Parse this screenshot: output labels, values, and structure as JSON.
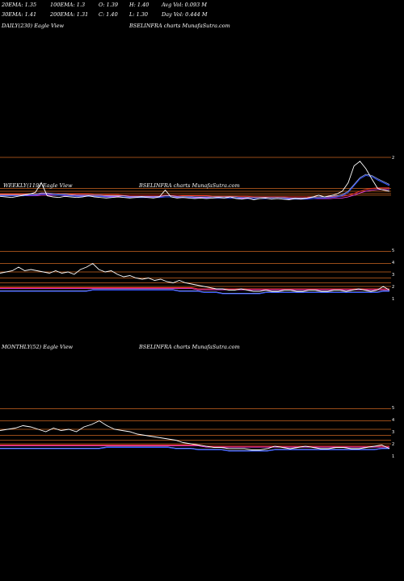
{
  "header": {
    "ema20": "20EMA: 1.35",
    "ema100": "100EMA: 1.3",
    "open": "O: 1.39",
    "high": "H: 1.40",
    "avgvol": "Avg Vol: 0.093  M",
    "ema30": "30EMA: 1.41",
    "ema200": "200EMA: 1.31",
    "close": "C: 1.40",
    "low": "L: 1.30",
    "dayvol": "Day Vol: 0.444  M"
  },
  "panels": {
    "daily": {
      "label": "DAILY(230) Eagle   View",
      "chart": "BSELINFRA charts MunafaSutra.com"
    },
    "weekly": {
      "label": "WEEKLY(119) Eagle   View",
      "chart": "BSELINFRA charts MunafaSutra.com"
    },
    "monthly": {
      "label": "MONTHLY(52) Eagle   View",
      "chart": "BSELINFRA charts MunafaSutra.com"
    }
  },
  "colors": {
    "price": "#ffffff",
    "ema_blue": "#3355ff",
    "ema_red": "#ff3333",
    "ema_magenta": "#ff44ff",
    "ema_light": "#aabbff",
    "level_line": "#cc6622"
  },
  "chart_data": [
    {
      "type": "line",
      "name": "daily",
      "ylim": [
        0.5,
        2.5
      ],
      "tick_labels": [
        "2"
      ],
      "price": [
        1.31,
        1.3,
        1.29,
        1.31,
        1.33,
        1.35,
        1.38,
        1.55,
        1.32,
        1.3,
        1.29,
        1.31,
        1.3,
        1.29,
        1.3,
        1.32,
        1.3,
        1.29,
        1.28,
        1.29,
        1.3,
        1.29,
        1.28,
        1.29,
        1.3,
        1.29,
        1.28,
        1.3,
        1.42,
        1.3,
        1.28,
        1.29,
        1.28,
        1.27,
        1.28,
        1.27,
        1.28,
        1.29,
        1.28,
        1.3,
        1.27,
        1.26,
        1.28,
        1.25,
        1.27,
        1.28,
        1.26,
        1.27,
        1.26,
        1.25,
        1.27,
        1.26,
        1.28,
        1.3,
        1.33,
        1.3,
        1.32,
        1.35,
        1.4,
        1.55,
        1.85,
        1.93,
        1.8,
        1.62,
        1.45,
        1.42,
        1.4
      ],
      "ema_blue": [
        1.32,
        1.32,
        1.32,
        1.32,
        1.32,
        1.33,
        1.33,
        1.35,
        1.35,
        1.34,
        1.33,
        1.33,
        1.32,
        1.31,
        1.31,
        1.31,
        1.31,
        1.31,
        1.3,
        1.3,
        1.3,
        1.3,
        1.29,
        1.29,
        1.29,
        1.29,
        1.29,
        1.29,
        1.3,
        1.3,
        1.29,
        1.29,
        1.29,
        1.28,
        1.28,
        1.28,
        1.28,
        1.28,
        1.28,
        1.28,
        1.28,
        1.27,
        1.27,
        1.27,
        1.27,
        1.27,
        1.27,
        1.27,
        1.27,
        1.26,
        1.26,
        1.26,
        1.26,
        1.27,
        1.28,
        1.28,
        1.29,
        1.3,
        1.32,
        1.38,
        1.5,
        1.62,
        1.68,
        1.66,
        1.6,
        1.55,
        1.5
      ],
      "ema_red": [
        1.35,
        1.35,
        1.35,
        1.35,
        1.35,
        1.35,
        1.35,
        1.36,
        1.36,
        1.36,
        1.36,
        1.35,
        1.35,
        1.35,
        1.35,
        1.35,
        1.34,
        1.34,
        1.34,
        1.34,
        1.34,
        1.33,
        1.33,
        1.33,
        1.33,
        1.33,
        1.33,
        1.33,
        1.33,
        1.33,
        1.33,
        1.32,
        1.32,
        1.32,
        1.32,
        1.32,
        1.31,
        1.31,
        1.31,
        1.31,
        1.31,
        1.31,
        1.31,
        1.3,
        1.3,
        1.3,
        1.3,
        1.3,
        1.3,
        1.3,
        1.3,
        1.3,
        1.3,
        1.3,
        1.3,
        1.3,
        1.3,
        1.31,
        1.31,
        1.33,
        1.36,
        1.4,
        1.43,
        1.45,
        1.46,
        1.46,
        1.46
      ],
      "levels": [
        2.0,
        1.45,
        1.4,
        1.36,
        1.33
      ]
    },
    {
      "type": "line",
      "name": "weekly",
      "ylim": [
        0,
        5
      ],
      "tick_labels": [
        "5",
        "4",
        "3",
        "2",
        "1"
      ],
      "price": [
        3.1,
        3.2,
        3.3,
        3.6,
        3.3,
        3.4,
        3.3,
        3.2,
        3.1,
        3.3,
        3.1,
        3.2,
        3.0,
        3.4,
        3.6,
        3.9,
        3.4,
        3.2,
        3.3,
        3.0,
        2.8,
        2.9,
        2.7,
        2.6,
        2.7,
        2.5,
        2.6,
        2.4,
        2.3,
        2.5,
        2.3,
        2.2,
        2.1,
        2.0,
        1.9,
        1.8,
        1.8,
        1.7,
        1.7,
        1.8,
        1.7,
        1.6,
        1.6,
        1.7,
        1.6,
        1.6,
        1.7,
        1.7,
        1.6,
        1.6,
        1.7,
        1.7,
        1.6,
        1.6,
        1.7,
        1.7,
        1.6,
        1.7,
        1.8,
        1.7,
        1.6,
        1.7,
        2.0,
        1.7
      ],
      "ema_blue": [
        1.6,
        1.6,
        1.6,
        1.6,
        1.6,
        1.6,
        1.6,
        1.6,
        1.6,
        1.6,
        1.6,
        1.6,
        1.6,
        1.6,
        1.6,
        1.7,
        1.7,
        1.7,
        1.7,
        1.7,
        1.7,
        1.7,
        1.7,
        1.7,
        1.7,
        1.7,
        1.7,
        1.7,
        1.7,
        1.6,
        1.6,
        1.6,
        1.6,
        1.5,
        1.5,
        1.5,
        1.4,
        1.4,
        1.4,
        1.4,
        1.4,
        1.4,
        1.4,
        1.5,
        1.5,
        1.5,
        1.5,
        1.5,
        1.5,
        1.5,
        1.5,
        1.5,
        1.5,
        1.5,
        1.5,
        1.5,
        1.5,
        1.5,
        1.5,
        1.5,
        1.5,
        1.5,
        1.6,
        1.6
      ],
      "ema_red": [
        1.9,
        1.9,
        1.9,
        1.9,
        1.9,
        1.9,
        1.9,
        1.9,
        1.9,
        1.9,
        1.9,
        1.9,
        1.9,
        1.9,
        1.9,
        1.9,
        1.9,
        1.9,
        1.9,
        1.9,
        1.9,
        1.9,
        1.9,
        1.9,
        1.9,
        1.9,
        1.9,
        1.9,
        1.9,
        1.9,
        1.9,
        1.9,
        1.8,
        1.8,
        1.8,
        1.8,
        1.8,
        1.8,
        1.8,
        1.8,
        1.8,
        1.8,
        1.8,
        1.8,
        1.8,
        1.8,
        1.8,
        1.8,
        1.8,
        1.8,
        1.8,
        1.8,
        1.8,
        1.8,
        1.8,
        1.8,
        1.8,
        1.8,
        1.8,
        1.8,
        1.8,
        1.8,
        1.8,
        1.8
      ],
      "levels": [
        4.9,
        3.9,
        3.2,
        2.7,
        2.3,
        2.0
      ]
    },
    {
      "type": "line",
      "name": "monthly",
      "ylim": [
        0,
        5
      ],
      "tick_labels": [
        "5",
        "4",
        "3",
        "2",
        "1"
      ],
      "price": [
        3.1,
        3.2,
        3.3,
        3.5,
        3.4,
        3.2,
        3.0,
        3.3,
        3.1,
        3.2,
        3.0,
        3.4,
        3.6,
        3.9,
        3.5,
        3.2,
        3.1,
        3.0,
        2.8,
        2.7,
        2.6,
        2.5,
        2.4,
        2.3,
        2.1,
        2.0,
        1.9,
        1.8,
        1.7,
        1.7,
        1.6,
        1.6,
        1.6,
        1.5,
        1.5,
        1.6,
        1.8,
        1.7,
        1.6,
        1.7,
        1.8,
        1.7,
        1.6,
        1.6,
        1.7,
        1.7,
        1.6,
        1.6,
        1.7,
        1.8,
        1.9,
        1.6
      ],
      "ema_blue": [
        1.6,
        1.6,
        1.6,
        1.6,
        1.6,
        1.6,
        1.6,
        1.6,
        1.6,
        1.6,
        1.6,
        1.6,
        1.6,
        1.6,
        1.7,
        1.7,
        1.7,
        1.7,
        1.7,
        1.7,
        1.7,
        1.7,
        1.7,
        1.6,
        1.6,
        1.6,
        1.5,
        1.5,
        1.5,
        1.5,
        1.4,
        1.4,
        1.4,
        1.4,
        1.4,
        1.4,
        1.5,
        1.5,
        1.5,
        1.5,
        1.5,
        1.5,
        1.5,
        1.5,
        1.5,
        1.5,
        1.5,
        1.5,
        1.5,
        1.5,
        1.6,
        1.6
      ],
      "ema_red": [
        1.9,
        1.9,
        1.9,
        1.9,
        1.9,
        1.9,
        1.9,
        1.9,
        1.9,
        1.9,
        1.9,
        1.9,
        1.9,
        1.9,
        1.9,
        1.9,
        1.9,
        1.9,
        1.9,
        1.9,
        1.9,
        1.9,
        1.9,
        1.9,
        1.9,
        1.9,
        1.9,
        1.8,
        1.8,
        1.8,
        1.8,
        1.8,
        1.8,
        1.8,
        1.8,
        1.8,
        1.8,
        1.8,
        1.8,
        1.8,
        1.8,
        1.8,
        1.8,
        1.8,
        1.8,
        1.8,
        1.8,
        1.8,
        1.8,
        1.8,
        1.8,
        1.8
      ],
      "levels": [
        4.9,
        3.9,
        3.2,
        2.7,
        2.3,
        2.0
      ]
    }
  ]
}
